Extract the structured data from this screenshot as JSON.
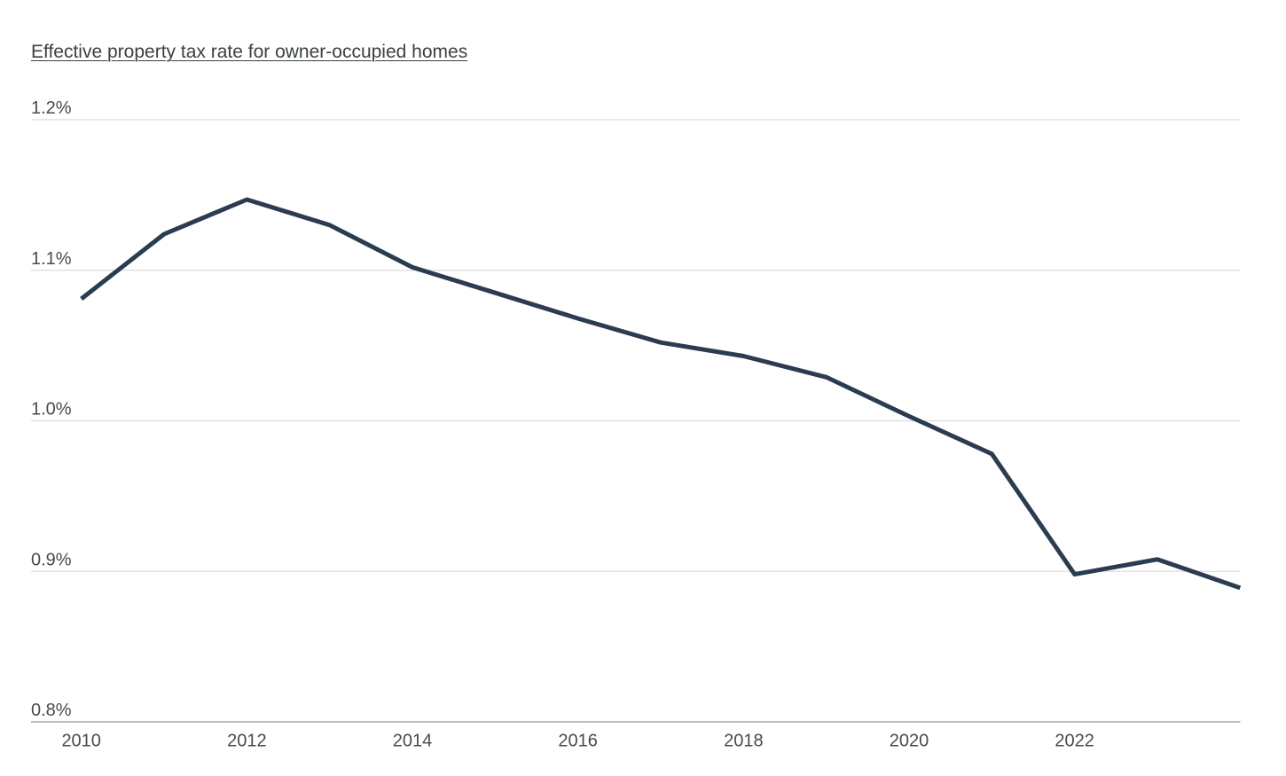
{
  "chart_data": {
    "type": "line",
    "title": "Effective property tax rate for owner-occupied homes",
    "series_name": "Effective property tax rate for owner-occupied homes",
    "x": [
      2010,
      2011,
      2012,
      2013,
      2014,
      2015,
      2016,
      2017,
      2018,
      2019,
      2020,
      2021,
      2022,
      2023,
      2024
    ],
    "values": [
      1.081,
      1.124,
      1.147,
      1.13,
      1.102,
      1.085,
      1.068,
      1.052,
      1.043,
      1.029,
      1.003,
      0.978,
      0.898,
      0.908,
      0.889
    ],
    "unit": "%",
    "xlabel": "",
    "ylabel": "",
    "ylim": [
      0.8,
      1.2
    ],
    "y_ticks": [
      {
        "value": 1.2,
        "label": "1.2%"
      },
      {
        "value": 1.1,
        "label": "1.1%"
      },
      {
        "value": 1.0,
        "label": "1.0%"
      },
      {
        "value": 0.9,
        "label": "0.9%"
      },
      {
        "value": 0.8,
        "label": "0.8%"
      }
    ],
    "x_ticks": [
      {
        "value": 2010,
        "label": "2010"
      },
      {
        "value": 2012,
        "label": "2012"
      },
      {
        "value": 2014,
        "label": "2014"
      },
      {
        "value": 2016,
        "label": "2016"
      },
      {
        "value": 2018,
        "label": "2018"
      },
      {
        "value": 2020,
        "label": "2020"
      },
      {
        "value": 2022,
        "label": "2022"
      }
    ],
    "grid": "horizontal gridlines only",
    "legend_position": "none",
    "colors": {
      "line": "#2b3c50",
      "gridline": "#dcdcdc",
      "axis_line": "#bdbdbd",
      "title_text": "#3c4043",
      "tick_text": "#4a4a4a",
      "background": "#ffffff"
    }
  }
}
